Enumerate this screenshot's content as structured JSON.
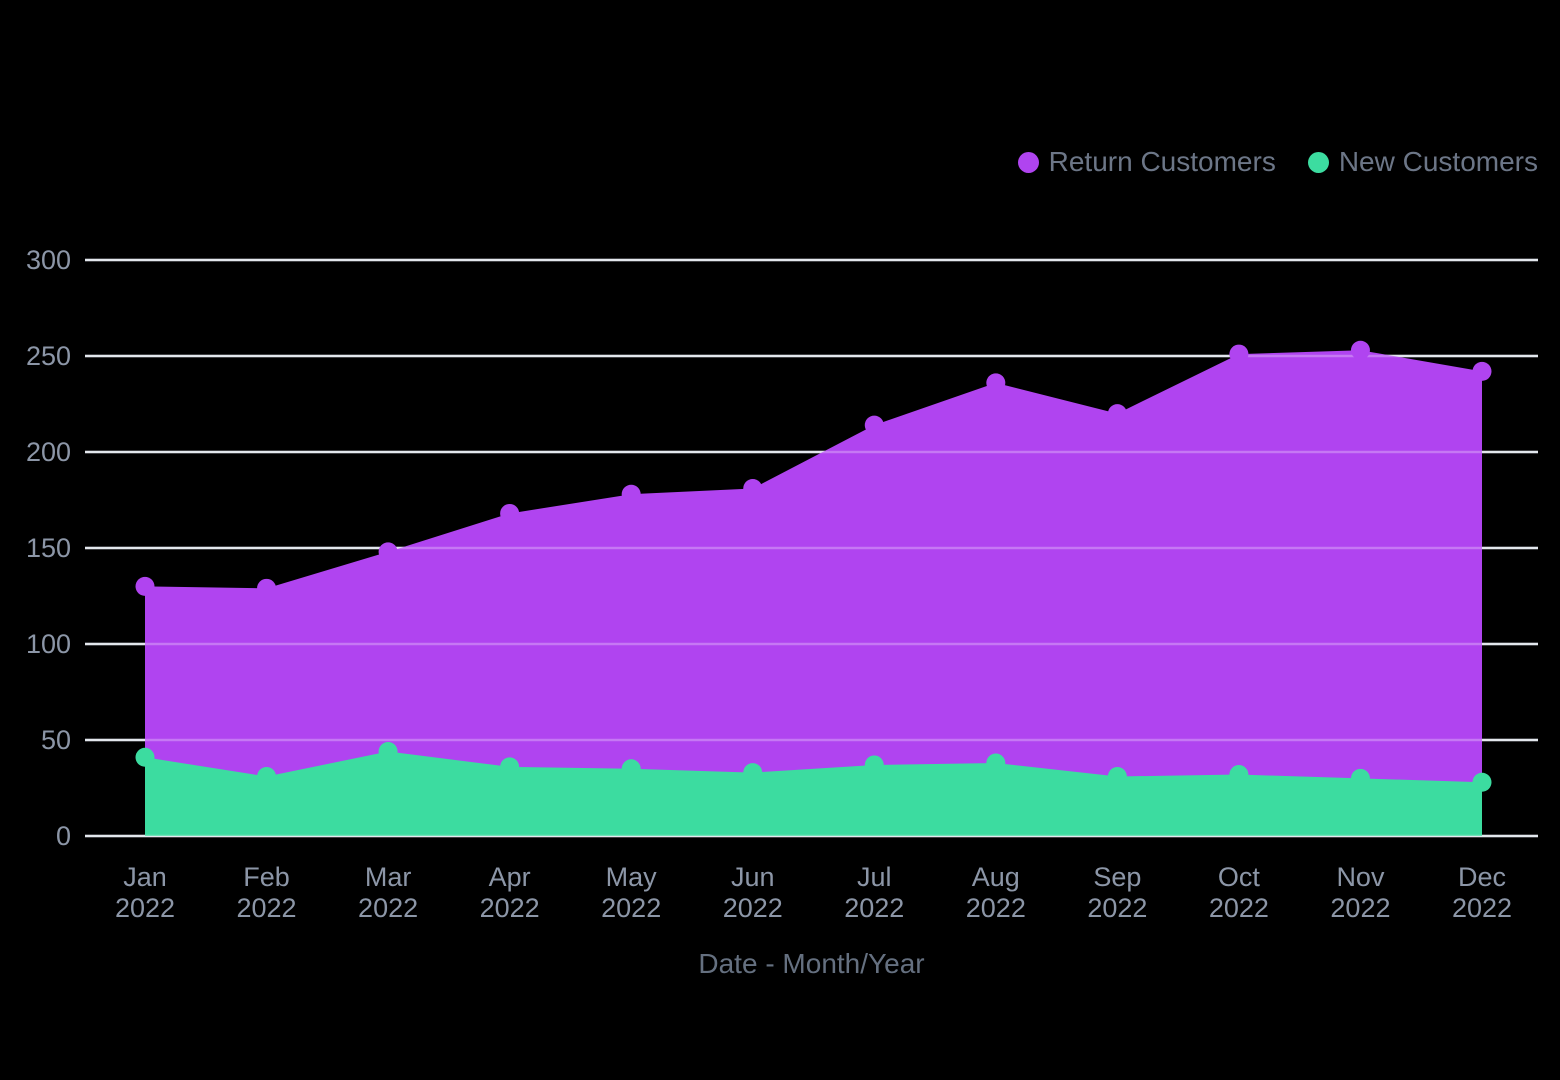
{
  "background": "#000000",
  "legend": {
    "items": [
      {
        "label": "Return Customers",
        "color": "#B044F0"
      },
      {
        "label": "New Customers",
        "color": "#3CDCA0"
      }
    ]
  },
  "axes": {
    "x_title": "Date - Month/Year",
    "y_ticks": [
      "0",
      "50",
      "100",
      "150",
      "200",
      "250",
      "300"
    ]
  },
  "colors": {
    "background": "#000000",
    "gridline": "#D9DEE7",
    "gridline_overlay": "rgba(255,255,255,0.28)",
    "tick_label": "#8C96A7",
    "axis_title": "#657080",
    "legend_text": "#6C7687",
    "return_customers": "#B044F0",
    "new_customers": "#3CDCA0"
  },
  "chart_data": {
    "type": "area",
    "stacked": false,
    "title": "",
    "xlabel": "Date - Month/Year",
    "ylabel": "",
    "categories": [
      "Jan 2022",
      "Feb 2022",
      "Mar 2022",
      "Apr 2022",
      "May 2022",
      "Jun 2022",
      "Jul 2022",
      "Aug 2022",
      "Sep 2022",
      "Oct 2022",
      "Nov 2022",
      "Dec 2022"
    ],
    "series": [
      {
        "name": "Return Customers",
        "color": "#B044F0",
        "values": [
          130,
          129,
          148,
          168,
          178,
          181,
          214,
          236,
          220,
          251,
          253,
          242
        ]
      },
      {
        "name": "New Customers",
        "color": "#3CDCA0",
        "values": [
          41,
          31,
          44,
          36,
          35,
          33,
          37,
          38,
          31,
          32,
          30,
          28
        ]
      }
    ],
    "ylim": [
      0,
      300
    ],
    "y_tick_step": 50,
    "grid": true,
    "grid_axis": "y",
    "legend_position": "top-right",
    "markers": true,
    "marker_radius": 9.5,
    "background": "#000000"
  }
}
